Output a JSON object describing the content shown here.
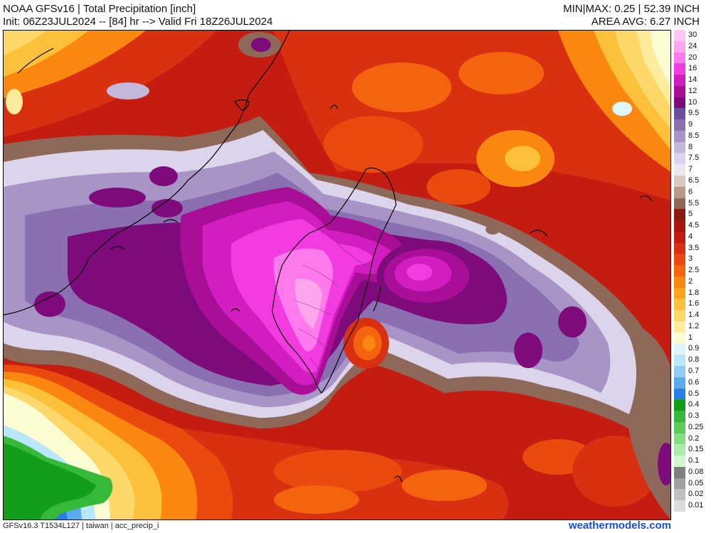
{
  "header": {
    "title": "NOAA GFSv16 |  Total Precipitation [inch]",
    "init": "Init: 06Z23JUL2024 -- [84] hr --> Valid Fri 18Z26JUL2024",
    "minmax": "MIN|MAX: 0.25 | 52.39 INCH",
    "area_avg": "AREA AVG: 6.27 INCH"
  },
  "legend": {
    "levels": [
      {
        "label": "30",
        "color": "#ffc8f0"
      },
      {
        "label": "24",
        "color": "#ffa6ee"
      },
      {
        "label": "20",
        "color": "#ff7aec"
      },
      {
        "label": "16",
        "color": "#f23ce0"
      },
      {
        "label": "14",
        "color": "#d21ec0"
      },
      {
        "label": "12",
        "color": "#a80e96"
      },
      {
        "label": "10",
        "color": "#7e0b7c"
      },
      {
        "label": "9.5",
        "color": "#6a4f9c"
      },
      {
        "label": "9",
        "color": "#8a70b0"
      },
      {
        "label": "8.5",
        "color": "#a894c6"
      },
      {
        "label": "8",
        "color": "#c4b8da"
      },
      {
        "label": "7.5",
        "color": "#dcd4ea"
      },
      {
        "label": "7",
        "color": "#ece6ee"
      },
      {
        "label": "6.5",
        "color": "#dcc6c0"
      },
      {
        "label": "6",
        "color": "#b89888"
      },
      {
        "label": "5.5",
        "color": "#8e6858"
      },
      {
        "label": "5",
        "color": "#8a1a10"
      },
      {
        "label": "4.5",
        "color": "#a81610"
      },
      {
        "label": "4",
        "color": "#c41c10"
      },
      {
        "label": "3.5",
        "color": "#d83010"
      },
      {
        "label": "3",
        "color": "#ea4a0e"
      },
      {
        "label": "2.5",
        "color": "#f4640e"
      },
      {
        "label": "2",
        "color": "#fa8810"
      },
      {
        "label": "1.8",
        "color": "#fca41c"
      },
      {
        "label": "1.6",
        "color": "#fcc03a"
      },
      {
        "label": "1.4",
        "color": "#fcd86a"
      },
      {
        "label": "1.2",
        "color": "#fcec9c"
      },
      {
        "label": "1",
        "color": "#fcfcd2"
      },
      {
        "label": "0.9",
        "color": "#dcf6fc"
      },
      {
        "label": "0.8",
        "color": "#b8e6fa"
      },
      {
        "label": "0.7",
        "color": "#90ccf4"
      },
      {
        "label": "0.6",
        "color": "#5aaaf0"
      },
      {
        "label": "0.5",
        "color": "#2a7ee8"
      },
      {
        "label": "0.4",
        "color": "#129e18"
      },
      {
        "label": "0.3",
        "color": "#36b838"
      },
      {
        "label": "0.25",
        "color": "#5ccc58"
      },
      {
        "label": "0.2",
        "color": "#86dc80"
      },
      {
        "label": "0.15",
        "color": "#acecaa"
      },
      {
        "label": "0.1",
        "color": "#d2f6d0"
      },
      {
        "label": "0.08",
        "color": "#808080"
      },
      {
        "label": "0.05",
        "color": "#a0a0a0"
      },
      {
        "label": "0.02",
        "color": "#c0c0c0"
      },
      {
        "label": "0.01",
        "color": "#dcdcdc"
      }
    ]
  },
  "footer": {
    "model_info": "GFSv16.3 T1534L127 | taiwan | acc_precip_i",
    "site": "weathermodels.com"
  }
}
